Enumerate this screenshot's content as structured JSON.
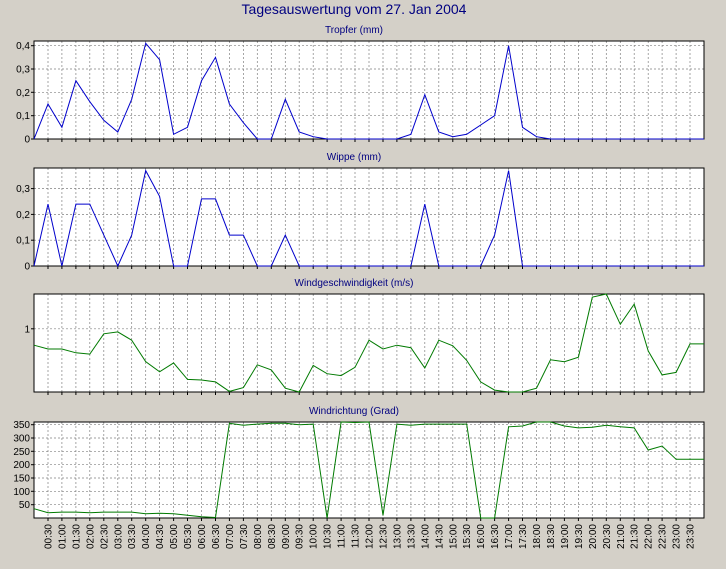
{
  "title": "Tagesauswertung vom 27. Jan 2004",
  "colors": {
    "background": "#d4d0c8",
    "plot_background": "#ffffff",
    "grid": "#808080",
    "title_text": "#000080",
    "panel_title_text": "#000080",
    "rain_line": "#0000cc",
    "wind_line": "#007a00"
  },
  "x_tick_labels": [
    "00:30",
    "01:00",
    "01:30",
    "02:00",
    "02:30",
    "03:00",
    "03:30",
    "04:00",
    "04:30",
    "05:00",
    "05:30",
    "06:00",
    "06:30",
    "07:00",
    "07:30",
    "08:00",
    "08:30",
    "09:00",
    "09:30",
    "10:00",
    "10:30",
    "11:00",
    "11:30",
    "12:00",
    "12:30",
    "13:00",
    "13:30",
    "14:00",
    "14:30",
    "15:00",
    "15:30",
    "16:00",
    "16:30",
    "17:00",
    "17:30",
    "18:00",
    "18:30",
    "19:00",
    "19:30",
    "20:00",
    "20:30",
    "21:00",
    "21:30",
    "22:00",
    "22:30",
    "23:00",
    "23:30"
  ],
  "chart_data": [
    {
      "type": "line",
      "title": "Tropfer (mm)",
      "ylim": [
        0,
        0.42
      ],
      "yticks": [
        0,
        0.1,
        0.2,
        0.3,
        0.4
      ],
      "ytick_labels": [
        "0",
        "0,1",
        "0,2",
        "0,3",
        "0,4"
      ],
      "grid": true,
      "color": "#0000cc",
      "x": [
        "00:00",
        "00:30",
        "01:00",
        "01:30",
        "02:00",
        "02:30",
        "03:00",
        "03:30",
        "04:00",
        "04:30",
        "05:00",
        "05:30",
        "06:00",
        "06:30",
        "07:00",
        "07:30",
        "08:00",
        "08:30",
        "09:00",
        "09:30",
        "10:00",
        "10:30",
        "11:00",
        "11:30",
        "12:00",
        "12:30",
        "13:00",
        "13:30",
        "14:00",
        "14:30",
        "15:00",
        "15:30",
        "16:00",
        "16:30",
        "17:00",
        "17:30",
        "18:00",
        "18:30",
        "19:00",
        "19:30",
        "20:00",
        "20:30",
        "21:00",
        "21:30",
        "22:00",
        "22:30",
        "23:00",
        "23:30",
        "24:00"
      ],
      "values": [
        0,
        0.15,
        0.05,
        0.25,
        0.16,
        0.08,
        0.03,
        0.17,
        0.41,
        0.34,
        0.02,
        0.05,
        0.25,
        0.35,
        0.15,
        0.07,
        0,
        0,
        0.17,
        0.03,
        0.01,
        0,
        0,
        0,
        0,
        0,
        0,
        0.02,
        0.19,
        0.03,
        0.01,
        0.02,
        0.06,
        0.1,
        0.4,
        0.05,
        0.01,
        0,
        0,
        0,
        0,
        0,
        0,
        0,
        0,
        0,
        0,
        0,
        0
      ]
    },
    {
      "type": "line",
      "title": "Wippe (mm)",
      "ylim": [
        0,
        0.38
      ],
      "yticks": [
        0,
        0.1,
        0.2,
        0.3
      ],
      "ytick_labels": [
        "0",
        "0,1",
        "0,2",
        "0,3"
      ],
      "grid": true,
      "color": "#0000cc",
      "x": [
        "00:00",
        "00:30",
        "01:00",
        "01:30",
        "02:00",
        "02:30",
        "03:00",
        "03:30",
        "04:00",
        "04:30",
        "05:00",
        "05:30",
        "06:00",
        "06:30",
        "07:00",
        "07:30",
        "08:00",
        "08:30",
        "09:00",
        "09:30",
        "10:00",
        "10:30",
        "11:00",
        "11:30",
        "12:00",
        "12:30",
        "13:00",
        "13:30",
        "14:00",
        "14:30",
        "15:00",
        "15:30",
        "16:00",
        "16:30",
        "17:00",
        "17:30",
        "18:00",
        "18:30",
        "19:00",
        "19:30",
        "20:00",
        "20:30",
        "21:00",
        "21:30",
        "22:00",
        "22:30",
        "23:00",
        "23:30",
        "24:00"
      ],
      "values": [
        0,
        0.24,
        0,
        0.24,
        0.24,
        0.12,
        0,
        0.12,
        0.37,
        0.27,
        0,
        0,
        0.26,
        0.26,
        0.12,
        0.12,
        0,
        0,
        0.12,
        0,
        0,
        0,
        0,
        0,
        0,
        0,
        0,
        0,
        0.24,
        0,
        0,
        0,
        0,
        0.12,
        0.37,
        0,
        0,
        0,
        0,
        0,
        0,
        0,
        0,
        0,
        0,
        0,
        0,
        0,
        0
      ]
    },
    {
      "type": "line",
      "title": "Windgeschwindigkeit (m/s)",
      "ylim": [
        0,
        1.55
      ],
      "yticks": [
        1
      ],
      "ytick_labels": [
        "1"
      ],
      "grid": true,
      "color": "#007a00",
      "x": [
        "00:00",
        "00:30",
        "01:00",
        "01:30",
        "02:00",
        "02:30",
        "03:00",
        "03:30",
        "04:00",
        "04:30",
        "05:00",
        "05:30",
        "06:00",
        "06:30",
        "07:00",
        "07:30",
        "08:00",
        "08:30",
        "09:00",
        "09:30",
        "10:00",
        "10:30",
        "11:00",
        "11:30",
        "12:00",
        "12:30",
        "13:00",
        "13:30",
        "14:00",
        "14:30",
        "15:00",
        "15:30",
        "16:00",
        "16:30",
        "17:00",
        "17:30",
        "18:00",
        "18:30",
        "19:00",
        "19:30",
        "20:00",
        "20:30",
        "21:00",
        "21:30",
        "22:00",
        "22:30",
        "23:00",
        "23:30",
        "24:00"
      ],
      "values": [
        0.74,
        0.68,
        0.68,
        0.62,
        0.6,
        0.92,
        0.95,
        0.82,
        0.48,
        0.32,
        0.46,
        0.2,
        0.19,
        0.16,
        0.01,
        0.07,
        0.43,
        0.35,
        0.06,
        0,
        0.42,
        0.29,
        0.26,
        0.39,
        0.82,
        0.68,
        0.74,
        0.7,
        0.38,
        0.82,
        0.73,
        0.5,
        0.16,
        0.03,
        0,
        0,
        0.06,
        0.51,
        0.48,
        0.55,
        1.5,
        1.55,
        1.07,
        1.39,
        0.65,
        0.27,
        0.31,
        0.76,
        0.76
      ]
    },
    {
      "type": "line",
      "title": "Windrichtung (Grad)",
      "ylim": [
        0,
        360
      ],
      "yticks": [
        50,
        100,
        150,
        200,
        250,
        300,
        350
      ],
      "ytick_labels": [
        "50",
        "100",
        "150",
        "200",
        "250",
        "300",
        "350"
      ],
      "grid": true,
      "color": "#007a00",
      "x": [
        "00:00",
        "00:30",
        "01:00",
        "01:30",
        "02:00",
        "02:30",
        "03:00",
        "03:30",
        "04:00",
        "04:30",
        "05:00",
        "05:30",
        "06:00",
        "06:30",
        "07:00",
        "07:30",
        "08:00",
        "08:30",
        "09:00",
        "09:30",
        "10:00",
        "10:30",
        "11:00",
        "11:30",
        "12:00",
        "12:30",
        "13:00",
        "13:30",
        "14:00",
        "14:30",
        "15:00",
        "15:30",
        "16:00",
        "16:30",
        "17:00",
        "17:30",
        "18:00",
        "18:30",
        "19:00",
        "19:30",
        "20:00",
        "20:30",
        "21:00",
        "21:30",
        "22:00",
        "22:30",
        "23:00",
        "23:30",
        "24:00"
      ],
      "values": [
        35,
        20,
        22,
        22,
        20,
        22,
        22,
        22,
        16,
        18,
        16,
        10,
        5,
        2,
        355,
        348,
        352,
        355,
        355,
        350,
        352,
        0,
        360,
        358,
        360,
        10,
        352,
        348,
        352,
        352,
        352,
        352,
        0,
        0,
        342,
        345,
        360,
        360,
        345,
        338,
        340,
        348,
        342,
        338,
        255,
        270,
        220,
        220,
        220
      ]
    }
  ]
}
